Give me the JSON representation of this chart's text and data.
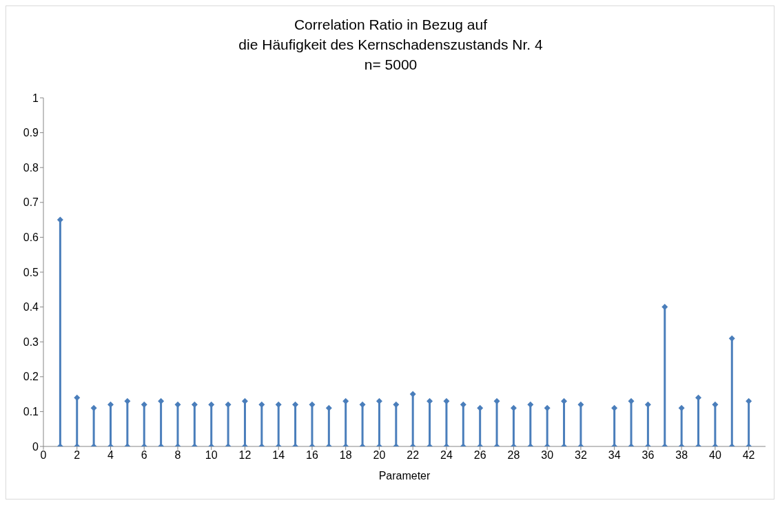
{
  "chart_data": {
    "type": "lollipop",
    "title": "Correlation Ratio in Bezug auf\ndie Häufigkeit des Kernschadenszustands Nr. 4\nn= 5000",
    "xlabel": "Parameter",
    "x": [
      1,
      2,
      3,
      4,
      5,
      6,
      7,
      8,
      9,
      10,
      11,
      12,
      13,
      14,
      15,
      16,
      17,
      18,
      19,
      20,
      21,
      22,
      23,
      24,
      25,
      26,
      27,
      28,
      29,
      30,
      31,
      32,
      33,
      34,
      35,
      36,
      37,
      38,
      39,
      40,
      41,
      42
    ],
    "series": [
      {
        "type": "scatter",
        "color": "#4a7ebb",
        "values": [
          0,
          0,
          0,
          0,
          0,
          0,
          0,
          0,
          0,
          0,
          0,
          0,
          0,
          0,
          0,
          0,
          0,
          0,
          0,
          0,
          0,
          0,
          0,
          0,
          0,
          0,
          0,
          0,
          0,
          0,
          0,
          0,
          null,
          0,
          0,
          0,
          0,
          0,
          0,
          0,
          0,
          0
        ]
      },
      {
        "color": "#4a7ebb",
        "values": [
          0.65,
          0.14,
          0.11,
          0.12,
          0.13,
          0.12,
          0.13,
          0.12,
          0.12,
          0.12,
          0.12,
          0.13,
          0.12,
          0.12,
          0.12,
          0.12,
          0.11,
          0.13,
          0.12,
          0.13,
          0.12,
          0.15,
          0.13,
          0.13,
          0.12,
          0.11,
          0.13,
          0.11,
          0.12,
          0.11,
          0.13,
          0.12,
          null,
          0.11,
          0.13,
          0.12,
          0.4,
          0.11,
          0.14,
          0.12,
          0.31,
          0.13
        ]
      }
    ],
    "marker": "diamond",
    "xlim": [
      0,
      43
    ],
    "xticks": [
      0,
      2,
      4,
      6,
      8,
      10,
      12,
      14,
      16,
      18,
      20,
      22,
      24,
      26,
      28,
      30,
      32,
      34,
      36,
      38,
      40,
      42
    ],
    "ylim": [
      0,
      1
    ],
    "yticks": [
      0,
      0.1,
      0.2,
      0.3,
      0.4,
      0.5,
      0.6,
      0.7,
      0.8,
      0.9,
      1
    ],
    "grid": false,
    "legend": false
  }
}
